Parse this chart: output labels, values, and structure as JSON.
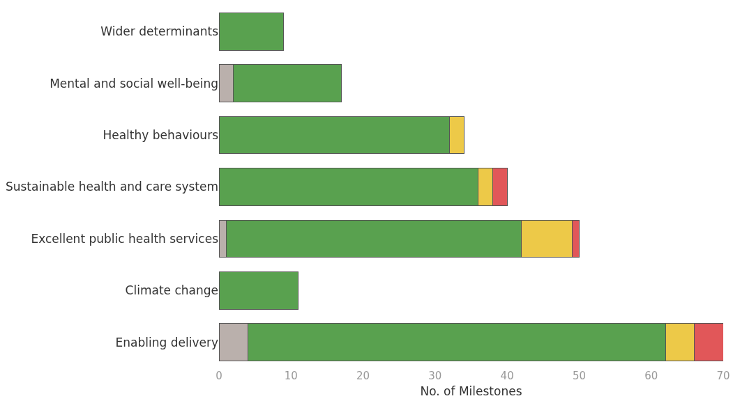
{
  "chart_data": {
    "type": "bar",
    "orientation": "horizontal",
    "stacked": true,
    "xlabel": "No. of Milestones",
    "categories": [
      "Wider determinants",
      "Mental and social well-being",
      "Healthy behaviours",
      "Sustainable health and care system",
      "Excellent public health services",
      "Climate change",
      "Enabling delivery"
    ],
    "series": [
      {
        "color": "#bab0ac",
        "values": [
          0,
          2,
          0,
          0,
          1,
          0,
          4
        ]
      },
      {
        "color": "#59a14f",
        "values": [
          9,
          15,
          32,
          36,
          41,
          11,
          58
        ]
      },
      {
        "color": "#edc948",
        "values": [
          0,
          0,
          2,
          2,
          7,
          0,
          4
        ]
      },
      {
        "color": "#e15759",
        "values": [
          0,
          0,
          0,
          2,
          1,
          0,
          4
        ]
      }
    ],
    "xlim": [
      0,
      70
    ],
    "xticks": [
      0,
      10,
      20,
      30,
      40,
      50,
      60,
      70
    ],
    "grid": false
  }
}
